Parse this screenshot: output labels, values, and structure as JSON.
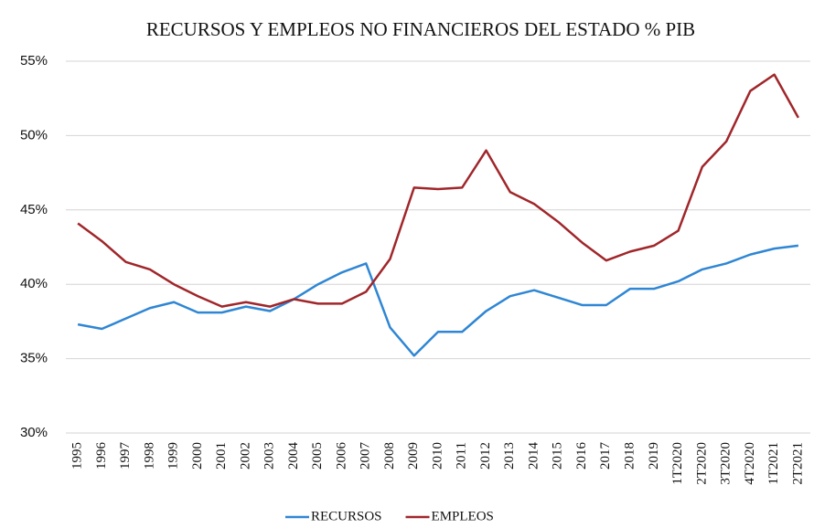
{
  "chart_data": {
    "type": "line",
    "title": "RECURSOS Y EMPLEOS NO FINANCIEROS DEL ESTADO % PIB",
    "categories": [
      "1995",
      "1996",
      "1997",
      "1998",
      "1999",
      "2000",
      "2001",
      "2002",
      "2003",
      "2004",
      "2005",
      "2006",
      "2007",
      "2008",
      "2009",
      "2010",
      "2011",
      "2012",
      "2013",
      "2014",
      "2015",
      "2016",
      "2017",
      "2018",
      "2019",
      "1T2020",
      "2T2020",
      "3T2020",
      "4T2020",
      "1T2021",
      "2T2021"
    ],
    "series": [
      {
        "name": "RECURSOS",
        "color": "#2f86d4",
        "values": [
          37.3,
          37.0,
          37.7,
          38.4,
          38.8,
          38.1,
          38.1,
          38.5,
          38.2,
          39.0,
          40.0,
          40.8,
          41.4,
          37.1,
          35.2,
          36.8,
          36.8,
          38.2,
          39.2,
          39.6,
          39.1,
          38.6,
          38.6,
          39.7,
          39.7,
          40.2,
          41.0,
          41.4,
          42.0,
          42.4,
          42.6
        ]
      },
      {
        "name": "EMPLEOS",
        "color": "#a0262a",
        "values": [
          44.1,
          42.9,
          41.5,
          41.0,
          40.0,
          39.2,
          38.5,
          38.8,
          38.5,
          39.0,
          38.7,
          38.7,
          39.5,
          41.7,
          46.5,
          46.4,
          46.5,
          49.0,
          46.2,
          45.4,
          44.2,
          42.8,
          41.6,
          42.2,
          42.6,
          43.6,
          47.9,
          49.6,
          53.0,
          54.1,
          51.2
        ]
      }
    ],
    "ylim": [
      30,
      55
    ],
    "yticks": [
      {
        "value": 30,
        "label": "30%"
      },
      {
        "value": 35,
        "label": "35%"
      },
      {
        "value": 40,
        "label": "40%"
      },
      {
        "value": 45,
        "label": "45%"
      },
      {
        "value": 50,
        "label": "50%"
      },
      {
        "value": 55,
        "label": "55%"
      }
    ],
    "grid": true,
    "legend": "bottom"
  }
}
